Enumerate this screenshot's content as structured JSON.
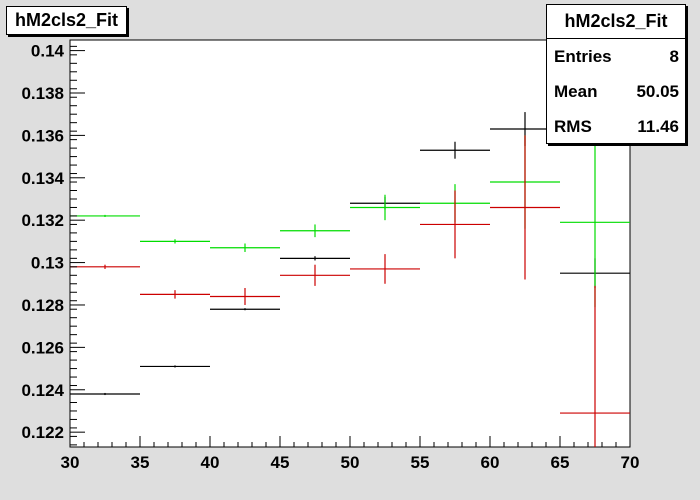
{
  "histogram_title": "hM2cls2_Fit",
  "stats": {
    "title": "hM2cls2_Fit",
    "rows": [
      {
        "label": "Entries",
        "value": "8"
      },
      {
        "label": "Mean",
        "value": "50.05"
      },
      {
        "label": "RMS",
        "value": "11.46"
      }
    ]
  },
  "chart_data": {
    "type": "scatter",
    "style": "error-bars",
    "title": "hM2cls2_Fit",
    "xlabel": "",
    "ylabel": "",
    "xlim": [
      30,
      70
    ],
    "ylim": [
      0.1213,
      0.1405
    ],
    "grid": false,
    "x_ticks": [
      "30",
      "35",
      "40",
      "45",
      "50",
      "55",
      "60",
      "65",
      "70"
    ],
    "y_ticks": [
      "0.122",
      "0.124",
      "0.126",
      "0.128",
      "0.13",
      "0.132",
      "0.134",
      "0.136",
      "0.138",
      "0.14"
    ],
    "bin_edges": [
      30,
      35,
      40,
      45,
      50,
      55,
      60,
      65,
      70
    ],
    "series": [
      {
        "color": "#000000",
        "values": [
          0.1238,
          0.1251,
          0.1278,
          0.1302,
          0.1328,
          0.1353,
          0.1363,
          0.1295
        ],
        "errors": [
          5e-05,
          5e-05,
          5e-05,
          0.0001,
          0.0003,
          0.0004,
          0.0008,
          0.0007
        ]
      },
      {
        "color": "#00dd00",
        "values": [
          0.1322,
          0.131,
          0.1307,
          0.1315,
          0.1326,
          0.1328,
          0.1338,
          0.1319
        ],
        "errors": [
          5e-05,
          0.0001,
          0.0002,
          0.0003,
          0.0006,
          0.0009,
          0.0022,
          0.004
        ]
      },
      {
        "color": "#cc0000",
        "values": [
          0.1298,
          0.1285,
          0.1284,
          0.1294,
          0.1297,
          0.1318,
          0.1326,
          0.1229
        ],
        "errors": [
          0.0001,
          0.0002,
          0.0004,
          0.0005,
          0.0007,
          0.0016,
          0.0034,
          0.006
        ]
      }
    ]
  }
}
